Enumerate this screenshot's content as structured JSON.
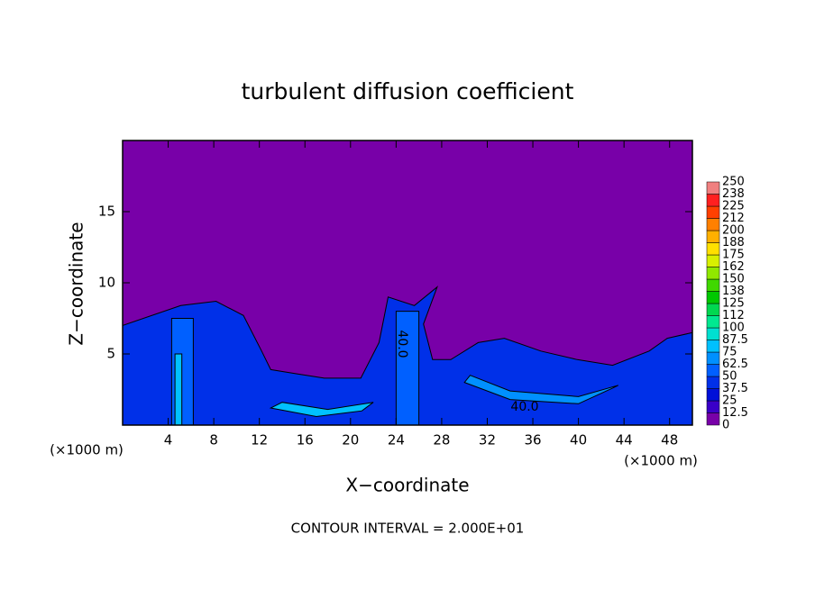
{
  "chart_data": {
    "type": "contour",
    "title": "turbulent diffusion coefficient",
    "xlabel": "X−coordinate",
    "ylabel": "Z−coordinate",
    "x_unit_left": "(×1000 m)",
    "x_unit_right": "(×1000 m)",
    "footer": "CONTOUR INTERVAL = 2.000E+01",
    "contour_labels": [
      "40.0",
      "40.0"
    ],
    "xlim": [
      0,
      50
    ],
    "ylim": [
      0,
      20
    ],
    "xticks": [
      4,
      8,
      12,
      16,
      20,
      24,
      28,
      32,
      36,
      40,
      44,
      48
    ],
    "yticks": [
      5,
      10,
      15
    ],
    "grid": false,
    "background_value": 0,
    "colorbar": {
      "levels": [
        0,
        12.5,
        25,
        37.5,
        50,
        62.5,
        75,
        87.5,
        100,
        112,
        125,
        138,
        150,
        162,
        175,
        188,
        200,
        212,
        225,
        238,
        250
      ],
      "colors": [
        "#7800a8",
        "#3a00c8",
        "#0010d8",
        "#0030e8",
        "#0060ff",
        "#0090ff",
        "#00c0ff",
        "#00e0d0",
        "#00e890",
        "#00d850",
        "#00c800",
        "#40d800",
        "#90e800",
        "#d8f000",
        "#ffe000",
        "#ffb000",
        "#ff8000",
        "#ff4000",
        "#ff2020",
        "#f08080"
      ]
    },
    "regions": [
      {
        "value": 37.5,
        "points": [
          [
            0,
            7
          ],
          [
            5.1,
            8.4
          ],
          [
            8.2,
            8.7
          ],
          [
            10.6,
            7.7
          ],
          [
            12.2,
            5.2
          ],
          [
            13,
            3.9
          ],
          [
            15.3,
            3.6
          ],
          [
            17.7,
            3.3
          ],
          [
            20.9,
            3.3
          ],
          [
            22.5,
            5.8
          ],
          [
            23.3,
            9
          ],
          [
            25.6,
            8.4
          ],
          [
            27.6,
            9.7
          ],
          [
            26.4,
            7.1
          ],
          [
            27.2,
            4.6
          ],
          [
            28.8,
            4.6
          ],
          [
            31.2,
            5.8
          ],
          [
            33.5,
            6.1
          ],
          [
            36.7,
            5.2
          ],
          [
            39.9,
            4.6
          ],
          [
            43,
            4.2
          ],
          [
            46.2,
            5.2
          ],
          [
            47.8,
            6.1
          ],
          [
            50,
            6.5
          ],
          [
            50,
            0
          ],
          [
            0,
            0
          ]
        ]
      },
      {
        "value": 50,
        "points": [
          [
            4.3,
            0
          ],
          [
            4.3,
            7.5
          ],
          [
            6.2,
            7.5
          ],
          [
            6.2,
            0
          ]
        ]
      },
      {
        "value": 50,
        "points": [
          [
            24,
            0
          ],
          [
            24,
            8
          ],
          [
            26,
            8
          ],
          [
            26,
            0
          ]
        ]
      },
      {
        "value": 62.5,
        "points": [
          [
            30,
            3
          ],
          [
            34,
            1.8
          ],
          [
            40,
            1.5
          ],
          [
            43,
            2.6
          ],
          [
            43.5,
            2.8
          ],
          [
            40,
            2
          ],
          [
            34,
            2.4
          ],
          [
            30.5,
            3.5
          ]
        ]
      },
      {
        "value": 75,
        "points": [
          [
            13,
            1.2
          ],
          [
            17,
            0.6
          ],
          [
            21,
            1
          ],
          [
            22,
            1.6
          ],
          [
            18,
            1.1
          ],
          [
            14,
            1.6
          ]
        ]
      },
      {
        "value": 75,
        "points": [
          [
            4.6,
            0
          ],
          [
            4.6,
            5
          ],
          [
            5.2,
            5
          ],
          [
            5.2,
            0
          ]
        ]
      }
    ]
  }
}
